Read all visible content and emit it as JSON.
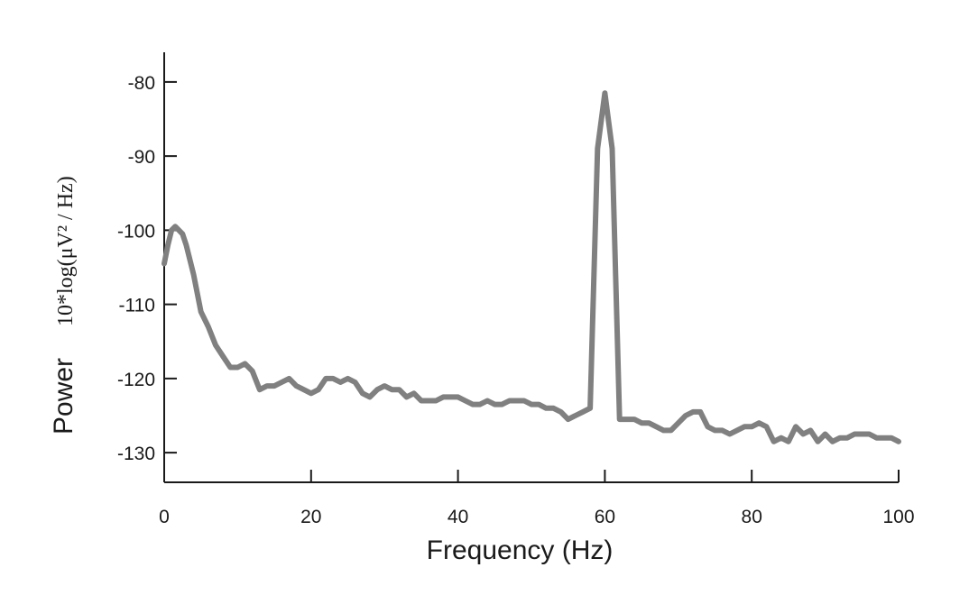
{
  "chart_data": {
    "type": "line",
    "xlabel": "Frequency (Hz)",
    "ylabel": "Power",
    "ylabel_unit": "10*log(μV² / Hz)",
    "xlim": [
      0,
      100
    ],
    "ylim": [
      -134,
      -76
    ],
    "x_ticks": [
      0,
      20,
      40,
      60,
      80,
      100
    ],
    "x_tick_labels": [
      "0",
      "20",
      "40",
      "60",
      "80",
      "100"
    ],
    "y_ticks": [
      -80,
      -90,
      -100,
      -110,
      -120,
      -130
    ],
    "y_tick_labels": [
      "-80",
      "-90",
      "-100",
      "-110",
      "-120",
      "-130"
    ],
    "grid": false,
    "line_color": "#808080",
    "series": [
      {
        "x": [
          0,
          0.5,
          1,
          1.5,
          2,
          2.5,
          3,
          4,
          5,
          6,
          7,
          8,
          9,
          10,
          11,
          12,
          13,
          14,
          15,
          16,
          17,
          18,
          19,
          20,
          21,
          22,
          23,
          24,
          25,
          26,
          27,
          28,
          29,
          30,
          31,
          32,
          33,
          34,
          35,
          36,
          37,
          38,
          39,
          40,
          41,
          42,
          43,
          44,
          45,
          46,
          47,
          48,
          49,
          50,
          51,
          52,
          53,
          54,
          55,
          56,
          57,
          58,
          59,
          60,
          61,
          62,
          63,
          64,
          65,
          66,
          67,
          68,
          69,
          70,
          71,
          72,
          73,
          74,
          75,
          76,
          77,
          78,
          79,
          80,
          81,
          82,
          83,
          84,
          85,
          86,
          87,
          88,
          89,
          90,
          91,
          92,
          93,
          94,
          95,
          96,
          97,
          98,
          99,
          100
        ],
        "values": [
          -104.5,
          -102,
          -100,
          -99.5,
          -100,
          -100.5,
          -102,
          -106,
          -111,
          -113,
          -115.5,
          -117,
          -118.5,
          -118.5,
          -118,
          -119,
          -121.5,
          -121,
          -121,
          -120.5,
          -120,
          -121,
          -121.5,
          -122,
          -121.5,
          -120,
          -120,
          -120.5,
          -120,
          -120.5,
          -122,
          -122.5,
          -121.5,
          -121,
          -121.5,
          -121.5,
          -122.5,
          -122,
          -123,
          -123,
          -123,
          -122.5,
          -122.5,
          -122.5,
          -123,
          -123.5,
          -123.5,
          -123,
          -123.5,
          -123.5,
          -123,
          -123,
          -123,
          -123.5,
          -123.5,
          -124,
          -124,
          -124.5,
          -125.5,
          -125,
          -124.5,
          -124,
          -89,
          -81.5,
          -89,
          -125.5,
          -125.5,
          -125.5,
          -126,
          -126,
          -126.5,
          -127,
          -127,
          -126,
          -125,
          -124.5,
          -124.5,
          -126.5,
          -127,
          -127,
          -127.5,
          -127,
          -126.5,
          -126.5,
          -126,
          -126.5,
          -128.5,
          -128,
          -128.5,
          -126.5,
          -127.5,
          -127,
          -128.5,
          -127.5,
          -128.5,
          -128,
          -128,
          -127.5,
          -127.5,
          -127.5,
          -128,
          -128,
          -128,
          -128.5
        ]
      }
    ]
  }
}
